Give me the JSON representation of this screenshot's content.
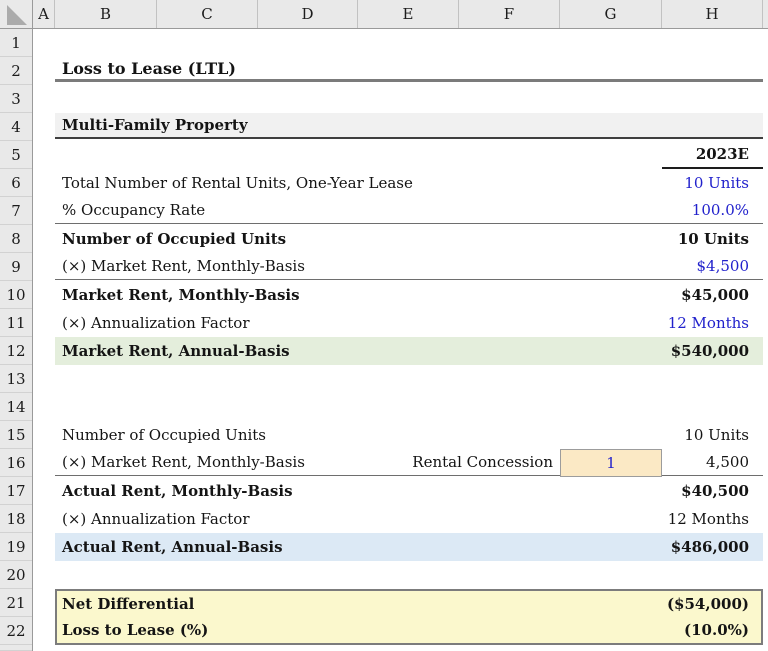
{
  "sheet": {
    "title": "Loss to Lease (LTL)",
    "section_header": "Multi-Family Property",
    "period_header": "2023E"
  },
  "grid": {
    "column_headers": [
      "A",
      "B",
      "C",
      "D",
      "E",
      "F",
      "G",
      "H"
    ],
    "row_count": 22,
    "partial_row_number": "23"
  },
  "rows": {
    "total_units": {
      "label": "Total Number of Rental Units, One-Year Lease",
      "value": "10 Units"
    },
    "occupancy": {
      "label": "% Occupancy Rate",
      "value": "100.0%"
    },
    "occupied_units": {
      "label": "Number of Occupied Units",
      "value": "10 Units"
    },
    "market_rent_input": {
      "label": "(×) Market Rent, Monthly-Basis",
      "value": "$4,500"
    },
    "market_rent_mo": {
      "label": "Market Rent, Monthly-Basis",
      "value": "$45,000"
    },
    "annualization": {
      "label": "(×) Annualization Factor",
      "value": "12 Months"
    },
    "market_rent_yr": {
      "label": "Market Rent, Annual-Basis",
      "value": "$540,000"
    },
    "occupied_units2": {
      "label": "Number of Occupied Units",
      "value": "10 Units"
    },
    "market_rent2": {
      "label": "(×) Market Rent, Monthly-Basis",
      "mid_label": "Rental Concession",
      "input_value": "1",
      "value": "4,500"
    },
    "actual_rent_mo": {
      "label": "Actual Rent, Monthly-Basis",
      "value": "$40,500"
    },
    "annualization2": {
      "label": "(×) Annualization Factor",
      "value": "12 Months"
    },
    "actual_rent_yr": {
      "label": "Actual Rent, Annual-Basis",
      "value": "$486,000"
    },
    "net_differential": {
      "label": "Net Differential",
      "value": "($54,000)"
    },
    "loss_to_lease": {
      "label": "Loss to Lease (%)",
      "value": "(10.0%)"
    }
  },
  "colors": {
    "input_font_blue": "#2121cc",
    "market_annual_fill_green": "#e4eedc",
    "actual_annual_fill_blue": "#dce9f5",
    "summary_fill_yellow": "#fbf8cd",
    "concession_fill_tan": "#fbe9c5",
    "section_fill_gray": "#f1f1f1",
    "header_chrome_gray": "#e9e9e9"
  }
}
